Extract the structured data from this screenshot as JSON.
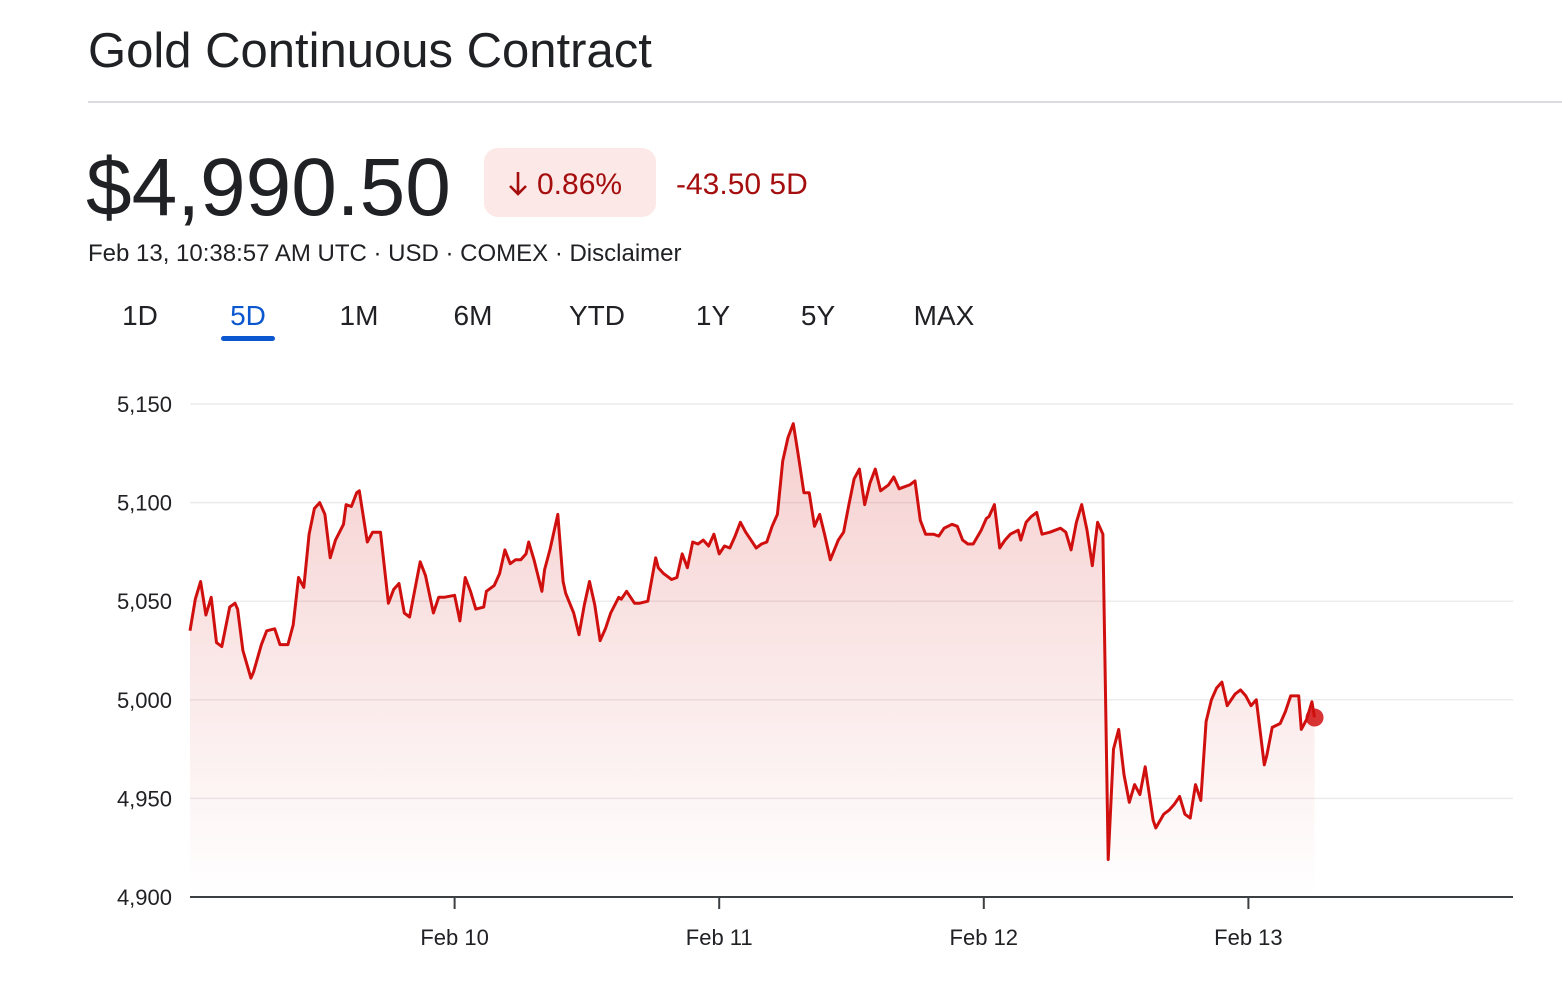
{
  "header": {
    "title": "Gold Continuous Contract",
    "price": "$4,990.50",
    "change_pct": "0.86%",
    "change": "-43.50 5D",
    "subline": "Feb 13, 10:38:57 AM UTC · USD · COMEX · Disclaimer"
  },
  "tabs": {
    "items": [
      "1D",
      "5D",
      "1M",
      "6M",
      "YTD",
      "1Y",
      "5Y",
      "MAX"
    ],
    "selected": 1
  },
  "chart_data": {
    "type": "line",
    "color": "#d0100f",
    "x": [
      9.0,
      9.02,
      9.04,
      9.06,
      9.08,
      9.1,
      9.12,
      9.15,
      9.17,
      9.18,
      9.2,
      9.23,
      9.24,
      9.27,
      9.29,
      9.32,
      9.34,
      9.37,
      9.39,
      9.41,
      9.43,
      9.45,
      9.47,
      9.49,
      9.51,
      9.53,
      9.55,
      9.58,
      9.59,
      9.61,
      9.63,
      9.64,
      9.67,
      9.69,
      9.72,
      9.75,
      9.77,
      9.79,
      9.81,
      9.83,
      9.85,
      9.87,
      9.89,
      9.92,
      9.94,
      9.96,
      10.0,
      10.02,
      10.04,
      10.06,
      10.08,
      10.11,
      10.12,
      10.15,
      10.17,
      10.19,
      10.21,
      10.23,
      10.25,
      10.27,
      10.28,
      10.3,
      10.33,
      10.34,
      10.36,
      10.39,
      10.41,
      10.42,
      10.45,
      10.47,
      10.49,
      10.51,
      10.53,
      10.55,
      10.57,
      10.59,
      10.62,
      10.63,
      10.65,
      10.68,
      10.7,
      10.73,
      10.76,
      10.77,
      10.79,
      10.82,
      10.84,
      10.86,
      10.88,
      10.9,
      10.92,
      10.94,
      10.96,
      10.98,
      11.0,
      11.02,
      11.04,
      11.06,
      11.08,
      11.1,
      11.12,
      11.14,
      11.16,
      11.18,
      11.2,
      11.22,
      11.24,
      11.26,
      11.28,
      11.3,
      11.32,
      11.34,
      11.36,
      11.38,
      11.4,
      11.42,
      11.45,
      11.47,
      11.49,
      11.51,
      11.53,
      11.55,
      11.57,
      11.59,
      11.61,
      11.64,
      11.66,
      11.68,
      11.7,
      11.72,
      11.74,
      11.76,
      11.78,
      11.81,
      11.83,
      11.85,
      11.88,
      11.9,
      11.92,
      11.94,
      11.96,
      11.99,
      12.01,
      12.02,
      12.04,
      12.06,
      12.08,
      12.1,
      12.13,
      12.14,
      12.16,
      12.18,
      12.2,
      12.22,
      12.25,
      12.27,
      12.29,
      12.31,
      12.33,
      12.35,
      12.37,
      12.39,
      12.41,
      12.43,
      12.45,
      12.47,
      12.49,
      12.51,
      12.53,
      12.55,
      12.57,
      12.59,
      12.61,
      12.64,
      12.65,
      12.68,
      12.7,
      12.72,
      12.74,
      12.76,
      12.78,
      12.8,
      12.82,
      12.84,
      12.86,
      12.88,
      12.9,
      12.92,
      12.95,
      12.97,
      12.99,
      13.01,
      13.03,
      13.06,
      13.07,
      13.09,
      13.12,
      13.14,
      13.16,
      13.19,
      13.2,
      13.22,
      13.24,
      13.25
    ],
    "values": [
      5035,
      5051,
      5060,
      5043,
      5052,
      5029,
      5027,
      5047,
      5049,
      5046,
      5025,
      5011,
      5014,
      5028,
      5035,
      5036,
      5028,
      5028,
      5038,
      5062,
      5057,
      5084,
      5097,
      5100,
      5094,
      5072,
      5081,
      5089,
      5099,
      5098,
      5105,
      5106,
      5080,
      5085,
      5085,
      5049,
      5056,
      5059,
      5044,
      5042,
      5056,
      5070,
      5063,
      5044,
      5052,
      5052,
      5053,
      5040,
      5062,
      5055,
      5046,
      5047,
      5055,
      5058,
      5064,
      5076,
      5069,
      5071,
      5071,
      5074,
      5080,
      5071,
      5055,
      5066,
      5076,
      5094,
      5060,
      5054,
      5044,
      5033,
      5048,
      5060,
      5048,
      5030,
      5036,
      5044,
      5052,
      5051,
      5055,
      5049,
      5049,
      5050,
      5072,
      5067,
      5064,
      5061,
      5062,
      5074,
      5067,
      5080,
      5079,
      5081,
      5078,
      5084,
      5074,
      5078,
      5077,
      5083,
      5090,
      5085,
      5081,
      5077,
      5079,
      5080,
      5088,
      5094,
      5121,
      5133,
      5140,
      5123,
      5105,
      5105,
      5088,
      5094,
      5083,
      5071,
      5081,
      5085,
      5099,
      5112,
      5117,
      5099,
      5110,
      5117,
      5106,
      5109,
      5113,
      5107,
      5108,
      5109,
      5111,
      5091,
      5084,
      5084,
      5083,
      5087,
      5089,
      5088,
      5081,
      5079,
      5079,
      5086,
      5092,
      5093,
      5099,
      5077,
      5081,
      5084,
      5086,
      5081,
      5090,
      5093,
      5095,
      5084,
      5085,
      5086,
      5087,
      5085,
      5076,
      5090,
      5099,
      5086,
      5068,
      5090,
      5084,
      4919,
      4975,
      4985,
      4962,
      4948,
      4957,
      4952,
      4966,
      4939,
      4935,
      4942,
      4944,
      4947,
      4951,
      4942,
      4940,
      4957,
      4949,
      4989,
      5000,
      5006,
      5009,
      4997,
      5003,
      5005,
      5002,
      4997,
      5000,
      4967,
      4972,
      4986,
      4988,
      4994,
      5002,
      5002,
      4985,
      4990,
      4999,
      4991
    ],
    "xlim": [
      9,
      14
    ],
    "xticks": [
      {
        "value": 10,
        "label": "Feb 10"
      },
      {
        "value": 11,
        "label": "Feb 11"
      },
      {
        "value": 12,
        "label": "Feb 12"
      },
      {
        "value": 13,
        "label": "Feb 13"
      }
    ],
    "ylim": [
      4900,
      5150
    ],
    "yticks": [
      {
        "value": 4900,
        "label": "4,900"
      },
      {
        "value": 4950,
        "label": "4,950"
      },
      {
        "value": 5000,
        "label": "5,000"
      },
      {
        "value": 5050,
        "label": "5,050"
      },
      {
        "value": 5100,
        "label": "5,100"
      },
      {
        "value": 5150,
        "label": "5,150"
      }
    ],
    "grid": true
  }
}
